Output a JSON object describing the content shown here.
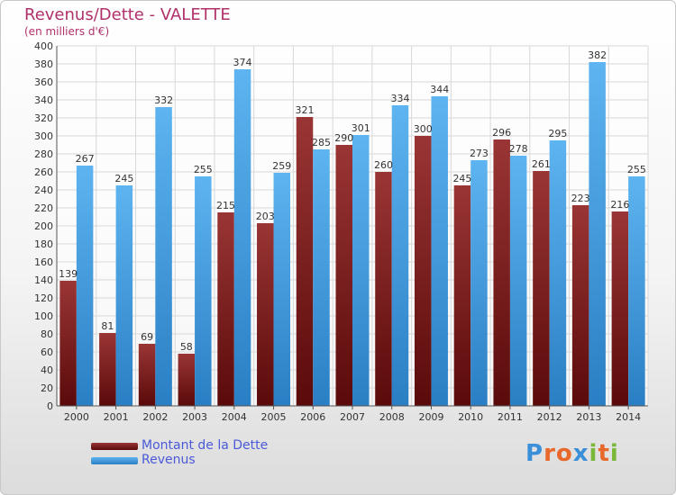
{
  "chart_data": {
    "type": "bar",
    "title": "Revenus/Dette - VALETTE",
    "subtitle": "(en milliers d'€)",
    "categories": [
      "2000",
      "2001",
      "2002",
      "2003",
      "2004",
      "2005",
      "2006",
      "2007",
      "2008",
      "2009",
      "2010",
      "2011",
      "2012",
      "2013",
      "2014"
    ],
    "series": [
      {
        "name": "Montant de la Dette",
        "color": "#7a1e1e",
        "values": [
          139,
          81,
          69,
          58,
          215,
          203,
          321,
          290,
          260,
          300,
          245,
          296,
          261,
          223,
          216
        ]
      },
      {
        "name": "Revenus",
        "color": "#4aa3e6",
        "values": [
          267,
          245,
          332,
          255,
          374,
          259,
          285,
          301,
          334,
          344,
          273,
          278,
          295,
          382,
          255
        ]
      }
    ],
    "ylim": [
      0,
      400
    ],
    "ytick_step": 20,
    "grid": true,
    "legend_placement": "bottom-left"
  },
  "legend": {
    "debt_label": "Montant de la Dette",
    "revenue_label": "Revenus"
  },
  "logo": {
    "text": "Proxiti",
    "letter_colors": [
      "#3a8fd8",
      "#e8672a",
      "#e8672a",
      "#3a8fd8",
      "#7ab83a",
      "#e8672a",
      "#7ab83a"
    ]
  }
}
